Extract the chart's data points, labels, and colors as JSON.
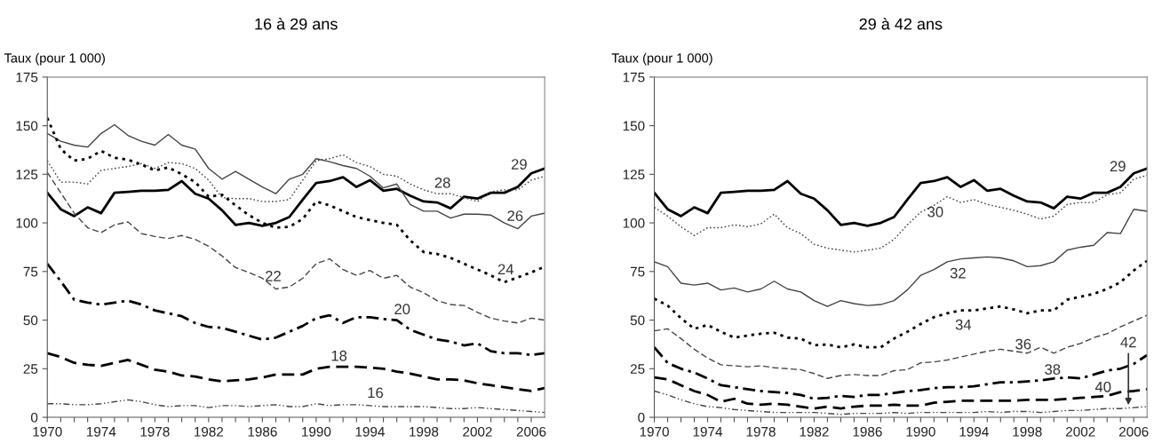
{
  "chart_data": [
    {
      "type": "line",
      "title": "16 à 29 ans",
      "ylabel": "Taux (pour 1 000)",
      "x": [
        1970,
        1971,
        1972,
        1973,
        1974,
        1975,
        1976,
        1977,
        1978,
        1979,
        1980,
        1981,
        1982,
        1983,
        1984,
        1985,
        1986,
        1987,
        1988,
        1989,
        1990,
        1991,
        1992,
        1993,
        1994,
        1995,
        1996,
        1997,
        1998,
        1999,
        2000,
        2001,
        2002,
        2003,
        2004,
        2005,
        2006,
        2007
      ],
      "xlim": [
        1970,
        2007
      ],
      "ylim": [
        0,
        175
      ],
      "yticks": [
        0,
        25,
        50,
        75,
        100,
        125,
        150,
        175
      ],
      "xticks": [
        1970,
        {
          "value": 1971,
          "label": null
        },
        {
          "value": 1972,
          "label": null
        },
        {
          "value": 1973,
          "label": null
        },
        1974,
        {
          "value": 1975,
          "label": null
        },
        {
          "value": 1976,
          "label": null
        },
        {
          "value": 1977,
          "label": null
        },
        1978,
        {
          "value": 1979,
          "label": null
        },
        {
          "value": 1980,
          "label": null
        },
        {
          "value": 1981,
          "label": null
        },
        1982,
        {
          "value": 1983,
          "label": null
        },
        {
          "value": 1984,
          "label": null
        },
        {
          "value": 1985,
          "label": null
        },
        1986,
        {
          "value": 1987,
          "label": null
        },
        {
          "value": 1988,
          "label": null
        },
        {
          "value": 1989,
          "label": null
        },
        1990,
        {
          "value": 1991,
          "label": null
        },
        {
          "value": 1992,
          "label": null
        },
        {
          "value": 1993,
          "label": null
        },
        1994,
        {
          "value": 1995,
          "label": null
        },
        {
          "value": 1996,
          "label": null
        },
        {
          "value": 1997,
          "label": null
        },
        1998,
        {
          "value": 1999,
          "label": null
        },
        {
          "value": 2000,
          "label": null
        },
        {
          "value": 2001,
          "label": null
        },
        2002,
        {
          "value": 2003,
          "label": null
        },
        {
          "value": 2004,
          "label": null
        },
        {
          "value": 2005,
          "label": null
        },
        2006
      ],
      "grid": false,
      "legend": false,
      "series": [
        {
          "name": "29",
          "color": "#000000",
          "line_style": "solid",
          "values": [
            115.5,
            107,
            103.5,
            108,
            105,
            115.5,
            116,
            116.5,
            116.5,
            117,
            121.5,
            115,
            112.5,
            106.5,
            99,
            100,
            98.5,
            100,
            103,
            112,
            120.5,
            121.5,
            123.5,
            118.5,
            122,
            116.5,
            117.5,
            114,
            111,
            110.5,
            107.5,
            113.5,
            112.5,
            115.5,
            115.5,
            118.5,
            125.5,
            128
          ]
        },
        {
          "name": "28",
          "color": "#444444",
          "line_style": "dotted",
          "values": [
            132,
            121,
            121,
            120,
            127,
            128,
            129,
            130.5,
            128,
            131,
            130.5,
            128,
            122,
            113,
            112.5,
            112.5,
            111,
            111,
            112,
            122,
            132,
            133,
            135,
            131,
            129,
            125,
            124,
            120,
            117,
            115,
            115,
            113,
            111,
            116,
            117,
            117,
            122,
            124
          ]
        },
        {
          "name": "26",
          "color": "#444444",
          "line_style": "solid",
          "values": [
            146,
            142,
            140,
            139,
            146,
            150.5,
            145,
            142,
            140,
            145.5,
            140,
            138,
            128,
            122.5,
            126.5,
            122.5,
            118.5,
            115,
            122.5,
            125,
            133,
            131.5,
            129.5,
            128,
            124,
            118,
            120,
            109.5,
            106,
            106,
            102.5,
            104.5,
            104.5,
            104,
            100,
            97,
            103.5,
            105
          ]
        },
        {
          "name": "24",
          "color": "#000000",
          "line_style": "dotted",
          "values": [
            154,
            138,
            132,
            133,
            137,
            133.5,
            132.5,
            130,
            127,
            128.5,
            125,
            121,
            113.5,
            114.5,
            109,
            104,
            100,
            97.5,
            98,
            102,
            111,
            109,
            106,
            103,
            101.5,
            100,
            99,
            91,
            85,
            84,
            82,
            79,
            76,
            73,
            69.5,
            72,
            74.5,
            77.5
          ]
        },
        {
          "name": "22",
          "color": "#444444",
          "line_style": "dashed",
          "values": [
            126,
            115.5,
            105,
            97.5,
            95,
            99,
            100.5,
            94.5,
            93,
            92,
            93.5,
            91.5,
            88,
            83,
            77,
            74.5,
            71.5,
            66,
            67,
            71.5,
            79,
            81.5,
            76,
            73,
            75.5,
            71.5,
            73,
            67,
            64,
            60,
            58,
            57.5,
            54,
            51,
            49.5,
            48.5,
            51,
            50
          ]
        },
        {
          "name": "20",
          "color": "#000000",
          "line_style": "dashdot",
          "values": [
            79,
            70,
            60.5,
            59,
            58,
            59,
            60,
            58,
            55,
            53.5,
            52,
            48.5,
            46.5,
            46,
            44,
            42,
            40,
            41,
            44,
            47,
            51,
            52.5,
            48.5,
            51.5,
            51.5,
            50.5,
            50,
            45,
            42.5,
            40,
            39,
            37,
            38,
            34,
            33,
            33,
            32,
            33
          ]
        },
        {
          "name": "18",
          "color": "#000000",
          "line_style": "dashed",
          "values": [
            33,
            31,
            28,
            27,
            26.5,
            28,
            29.5,
            27,
            24.5,
            23.5,
            21.5,
            21,
            19.5,
            18.5,
            19,
            19.5,
            20.5,
            22,
            22,
            22,
            25,
            26,
            26,
            26,
            25.5,
            25,
            23.5,
            22.5,
            21,
            19.5,
            19.5,
            19,
            17.5,
            16.5,
            15.5,
            14.5,
            13.5,
            15
          ]
        },
        {
          "name": "16",
          "color": "#444444",
          "line_style": "dashdotdot",
          "values": [
            7,
            7,
            6.5,
            6.5,
            7,
            8,
            9,
            8,
            6.5,
            5.5,
            6,
            6,
            5,
            6,
            6,
            5.5,
            6,
            6.5,
            5.5,
            5.5,
            7,
            6,
            6.5,
            6.5,
            6,
            5.5,
            5.5,
            5.5,
            5.5,
            5,
            4.5,
            4.5,
            5,
            4.5,
            4,
            3.5,
            3,
            2.5
          ]
        }
      ]
    },
    {
      "type": "line",
      "title": "29 à 42 ans",
      "ylabel": "Taux (pour 1 000)",
      "x": [
        1970,
        1971,
        1972,
        1973,
        1974,
        1975,
        1976,
        1977,
        1978,
        1979,
        1980,
        1981,
        1982,
        1983,
        1984,
        1985,
        1986,
        1987,
        1988,
        1989,
        1990,
        1991,
        1992,
        1993,
        1994,
        1995,
        1996,
        1997,
        1998,
        1999,
        2000,
        2001,
        2002,
        2003,
        2004,
        2005,
        2006,
        2007
      ],
      "xlim": [
        1970,
        2007
      ],
      "ylim": [
        0,
        175
      ],
      "yticks": [
        0,
        25,
        50,
        75,
        100,
        125,
        150,
        175
      ],
      "xticks": [
        1970,
        {
          "value": 1971,
          "label": null
        },
        {
          "value": 1972,
          "label": null
        },
        {
          "value": 1973,
          "label": null
        },
        1974,
        {
          "value": 1975,
          "label": null
        },
        {
          "value": 1976,
          "label": null
        },
        {
          "value": 1977,
          "label": null
        },
        1978,
        {
          "value": 1979,
          "label": null
        },
        {
          "value": 1980,
          "label": null
        },
        {
          "value": 1981,
          "label": null
        },
        1982,
        {
          "value": 1983,
          "label": null
        },
        {
          "value": 1984,
          "label": null
        },
        {
          "value": 1985,
          "label": null
        },
        1986,
        {
          "value": 1987,
          "label": null
        },
        {
          "value": 1988,
          "label": null
        },
        {
          "value": 1989,
          "label": null
        },
        1990,
        {
          "value": 1991,
          "label": null
        },
        {
          "value": 1992,
          "label": null
        },
        {
          "value": 1993,
          "label": null
        },
        1994,
        {
          "value": 1995,
          "label": null
        },
        {
          "value": 1996,
          "label": null
        },
        {
          "value": 1997,
          "label": null
        },
        1998,
        {
          "value": 1999,
          "label": null
        },
        {
          "value": 2000,
          "label": null
        },
        {
          "value": 2001,
          "label": null
        },
        2002,
        {
          "value": 2003,
          "label": null
        },
        {
          "value": 2004,
          "label": null
        },
        {
          "value": 2005,
          "label": null
        },
        2006
      ],
      "grid": false,
      "legend": false,
      "series": [
        {
          "name": "29",
          "color": "#000000",
          "line_style": "solid",
          "values": [
            115.5,
            107,
            103.5,
            108,
            105,
            115.5,
            116,
            116.5,
            116.5,
            117,
            121.5,
            115,
            112.5,
            106.5,
            99,
            100,
            98.5,
            100,
            103,
            112,
            120.5,
            121.5,
            123.5,
            118.5,
            122,
            116.5,
            117.5,
            114,
            111,
            110.5,
            107.5,
            113.5,
            112.5,
            115.5,
            115.5,
            118.5,
            125.5,
            128
          ]
        },
        {
          "name": "30",
          "color": "#444444",
          "line_style": "dotted",
          "values": [
            108,
            103.5,
            98,
            93.5,
            97.5,
            97.5,
            99,
            98,
            99.5,
            104.5,
            97.5,
            94.5,
            89,
            87,
            86,
            85,
            86,
            87,
            91.5,
            99,
            105.5,
            109,
            113.5,
            110.5,
            112,
            109.5,
            108,
            106.5,
            104.5,
            102,
            103.5,
            109.5,
            110.5,
            110.5,
            114.5,
            115.5,
            122.5,
            124.5
          ]
        },
        {
          "name": "32",
          "color": "#444444",
          "line_style": "solid",
          "values": [
            80,
            77.5,
            69,
            68,
            69,
            65.5,
            66.5,
            64.5,
            66,
            70,
            66,
            64.5,
            60,
            57,
            60,
            58.5,
            57.5,
            58,
            60,
            65.5,
            73,
            76,
            80,
            81.5,
            82,
            82.5,
            82,
            80.5,
            77.5,
            78,
            80,
            86,
            87.5,
            88.5,
            95,
            94.5,
            107,
            106
          ]
        },
        {
          "name": "34",
          "color": "#000000",
          "line_style": "dotted",
          "values": [
            61,
            57.5,
            51,
            45.5,
            47.5,
            44,
            41,
            42,
            43,
            43.5,
            41,
            40.5,
            37,
            37.5,
            36,
            37.5,
            36,
            36,
            40.5,
            44,
            48,
            51.5,
            53.5,
            55,
            55,
            56,
            57,
            55.5,
            53.5,
            55,
            55,
            60.5,
            62,
            63.5,
            66,
            69.5,
            75.5,
            80.5
          ]
        },
        {
          "name": "36",
          "color": "#444444",
          "line_style": "dashed",
          "values": [
            44.5,
            45.5,
            40.5,
            35,
            30.5,
            27,
            26.5,
            26,
            26.5,
            25.5,
            25,
            24.5,
            22.5,
            20,
            21.5,
            22,
            21.5,
            21.5,
            24,
            24.5,
            28,
            28.5,
            29.5,
            31,
            32.5,
            34,
            35,
            34,
            33,
            36,
            33,
            36,
            38,
            41,
            43,
            46.5,
            49.5,
            52.5
          ]
        },
        {
          "name": "38",
          "color": "#000000",
          "line_style": "dashdot",
          "values": [
            36,
            28,
            25,
            23,
            20,
            16.5,
            15.5,
            14.5,
            13.5,
            13,
            12.5,
            11.5,
            9.5,
            10,
            11,
            10.5,
            11.5,
            11.5,
            12.5,
            13.5,
            14,
            15,
            15.5,
            15.5,
            16,
            17,
            18,
            18,
            18.5,
            19,
            20,
            20.5,
            20,
            22,
            24,
            25,
            27.5,
            32
          ]
        },
        {
          "name": "40",
          "color": "#000000",
          "line_style": "dashed",
          "values": [
            20.5,
            19.5,
            16.5,
            13.5,
            11.5,
            8,
            9.5,
            7,
            6.5,
            7,
            6.5,
            5.5,
            4.5,
            5.5,
            4.5,
            5.5,
            6,
            6,
            6.5,
            6,
            6,
            7.5,
            8,
            8.5,
            8.5,
            8.5,
            8.5,
            8.5,
            9,
            9,
            9,
            9.5,
            10,
            10.5,
            11,
            13,
            13.5,
            14.5
          ]
        },
        {
          "name": "42",
          "color": "#444444",
          "line_style": "dashdotdot",
          "values": [
            13.5,
            11.5,
            9,
            7,
            5.5,
            5,
            4,
            3.5,
            3,
            2.5,
            2.5,
            2.5,
            2.5,
            2,
            1.5,
            2,
            2,
            2,
            2.5,
            2,
            2.5,
            2.5,
            2.5,
            2.5,
            2.5,
            3,
            2.5,
            3,
            3,
            2.5,
            3,
            3.5,
            3.5,
            4,
            4.5,
            4.5,
            5,
            5.5
          ]
        }
      ]
    }
  ]
}
